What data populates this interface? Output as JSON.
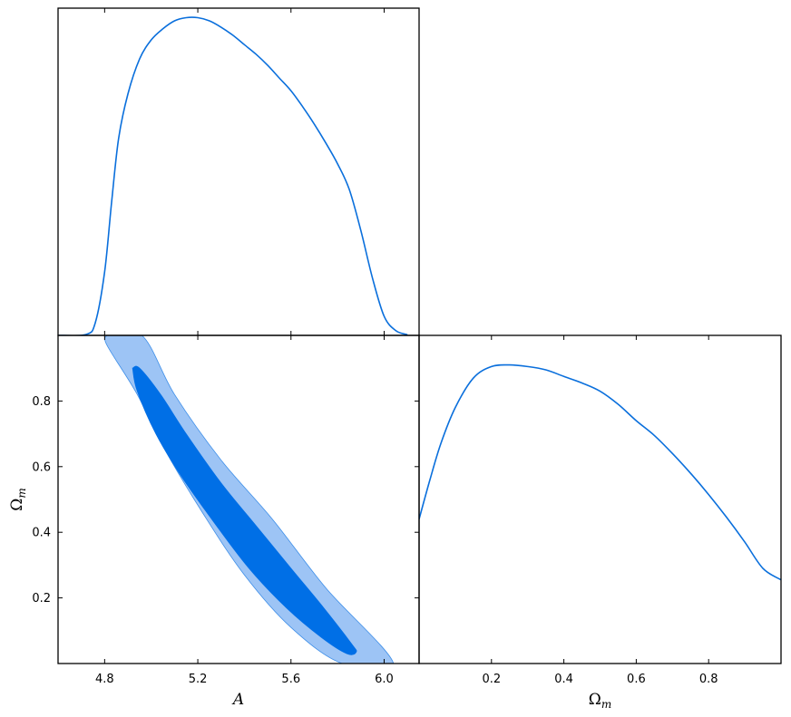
{
  "chart_data": {
    "type": "triangle-plot",
    "colors": {
      "line": "#0a6fdc",
      "contour_inner": "#006fe6",
      "contour_outer": "#9dc4f5",
      "contour_outer_edge": "#3d8ee8",
      "axes": "#000000"
    },
    "panels": [
      {
        "id": "A-marginal",
        "type": "line",
        "x_param": "A",
        "xlim": [
          4.6,
          6.15
        ],
        "ylim": [
          0,
          1.03
        ],
        "x": [
          4.6,
          4.72,
          4.76,
          4.8,
          4.83,
          4.86,
          4.9,
          4.95,
          5.0,
          5.05,
          5.1,
          5.15,
          5.2,
          5.25,
          5.3,
          5.35,
          5.4,
          5.45,
          5.5,
          5.55,
          5.6,
          5.65,
          5.7,
          5.75,
          5.8,
          5.85,
          5.9,
          5.95,
          6.0,
          6.05,
          6.1
        ],
        "y": [
          0,
          0.003,
          0.04,
          0.2,
          0.42,
          0.62,
          0.76,
          0.87,
          0.93,
          0.965,
          0.99,
          1.0,
          1.0,
          0.99,
          0.97,
          0.945,
          0.915,
          0.885,
          0.85,
          0.81,
          0.77,
          0.72,
          0.665,
          0.605,
          0.54,
          0.46,
          0.33,
          0.18,
          0.06,
          0.015,
          0.002
        ]
      },
      {
        "id": "A-Omega_m-2d",
        "type": "contour",
        "x_param": "A",
        "y_param": "Omega_m",
        "xlim": [
          4.6,
          6.15
        ],
        "ylim": [
          0,
          1.0
        ],
        "xticks": [
          "4.8",
          "5.2",
          "5.6",
          "6.0"
        ],
        "yticks": [
          "0.2",
          "0.4",
          "0.6",
          "0.8"
        ],
        "xlabel": "A",
        "ylabel": "Ω_m",
        "regions": [
          {
            "level": "95%",
            "x": [
              4.81,
              4.96,
              5.1,
              5.3,
              5.52,
              5.75,
              6.04,
              5.82,
              5.6,
              5.4,
              5.22,
              5.06,
              4.94,
              4.81,
              4.81
            ],
            "y": [
              1.0,
              1.0,
              0.82,
              0.62,
              0.44,
              0.23,
              0.0,
              0.0,
              0.11,
              0.27,
              0.46,
              0.65,
              0.82,
              0.97,
              1.0
            ]
          },
          {
            "level": "68%",
            "x": [
              4.92,
              4.95,
              5.04,
              5.15,
              5.3,
              5.45,
              5.6,
              5.74,
              5.86,
              5.88,
              5.84,
              5.73,
              5.58,
              5.42,
              5.27,
              5.13,
              5.02,
              4.94,
              4.92
            ],
            "y": [
              0.9,
              0.9,
              0.82,
              0.7,
              0.55,
              0.42,
              0.29,
              0.17,
              0.06,
              0.035,
              0.03,
              0.08,
              0.17,
              0.29,
              0.43,
              0.57,
              0.7,
              0.83,
              0.9
            ]
          }
        ]
      },
      {
        "id": "Omega_m-marginal",
        "type": "line",
        "x_param": "Omega_m",
        "xlim": [
          0,
          1.0
        ],
        "ylim": [
          0,
          1.0
        ],
        "xticks": [
          "0.2",
          "0.4",
          "0.6",
          "0.8"
        ],
        "xlabel": "Ω_m",
        "x": [
          0.0,
          0.03,
          0.06,
          0.1,
          0.15,
          0.2,
          0.25,
          0.3,
          0.35,
          0.4,
          0.45,
          0.5,
          0.55,
          0.6,
          0.65,
          0.7,
          0.75,
          0.8,
          0.85,
          0.9,
          0.95,
          1.0
        ],
        "y": [
          0.44,
          0.56,
          0.67,
          0.78,
          0.87,
          0.905,
          0.91,
          0.905,
          0.895,
          0.875,
          0.855,
          0.83,
          0.79,
          0.74,
          0.695,
          0.64,
          0.58,
          0.515,
          0.445,
          0.37,
          0.29,
          0.255
        ]
      }
    ]
  }
}
